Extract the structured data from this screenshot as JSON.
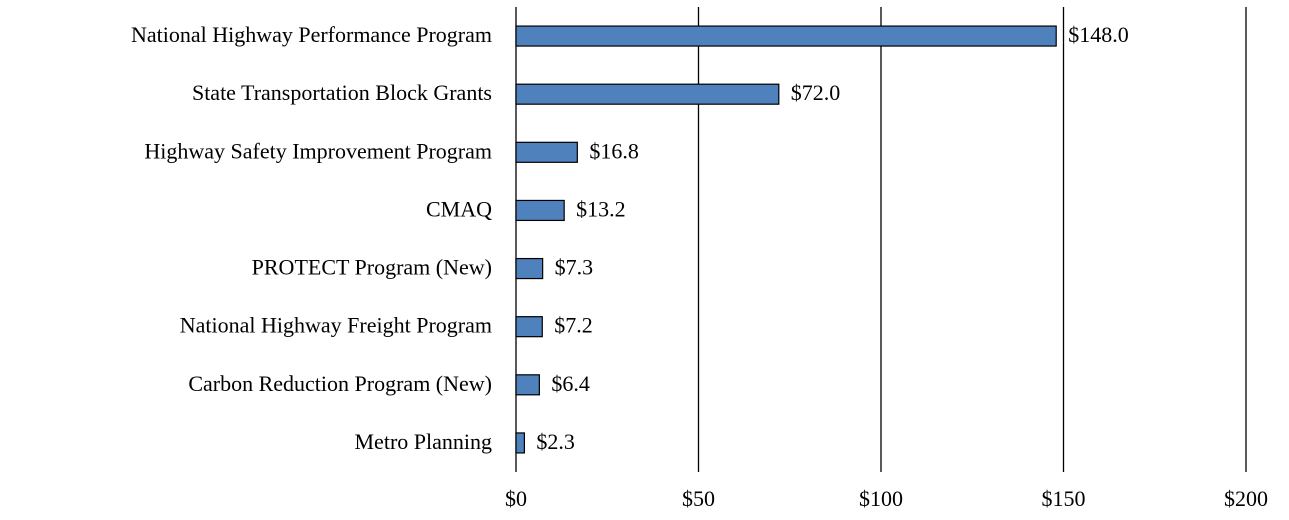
{
  "chart_data": {
    "type": "barh",
    "categories": [
      "National Highway Performance Program",
      "State Transportation Block Grants",
      "Highway Safety Improvement Program",
      "CMAQ",
      "PROTECT Program (New)",
      "National Highway Freight Program",
      "Carbon Reduction Program (New)",
      "Metro Planning"
    ],
    "values": [
      148.0,
      72.0,
      16.8,
      13.2,
      7.3,
      7.2,
      6.4,
      2.3
    ],
    "value_labels": [
      "$148.0",
      "$72.0",
      "$16.8",
      "$13.2",
      "$7.3",
      "$7.2",
      "$6.4",
      "$2.3"
    ],
    "color": "#4f81bd",
    "xlim": [
      0,
      200
    ],
    "xticks": [
      {
        "value": 0,
        "label": "$0"
      },
      {
        "value": 50,
        "label": "$50"
      },
      {
        "value": 100,
        "label": "$100"
      },
      {
        "value": 150,
        "label": "$150"
      },
      {
        "value": 200,
        "label": "$200"
      }
    ],
    "grid": true
  }
}
